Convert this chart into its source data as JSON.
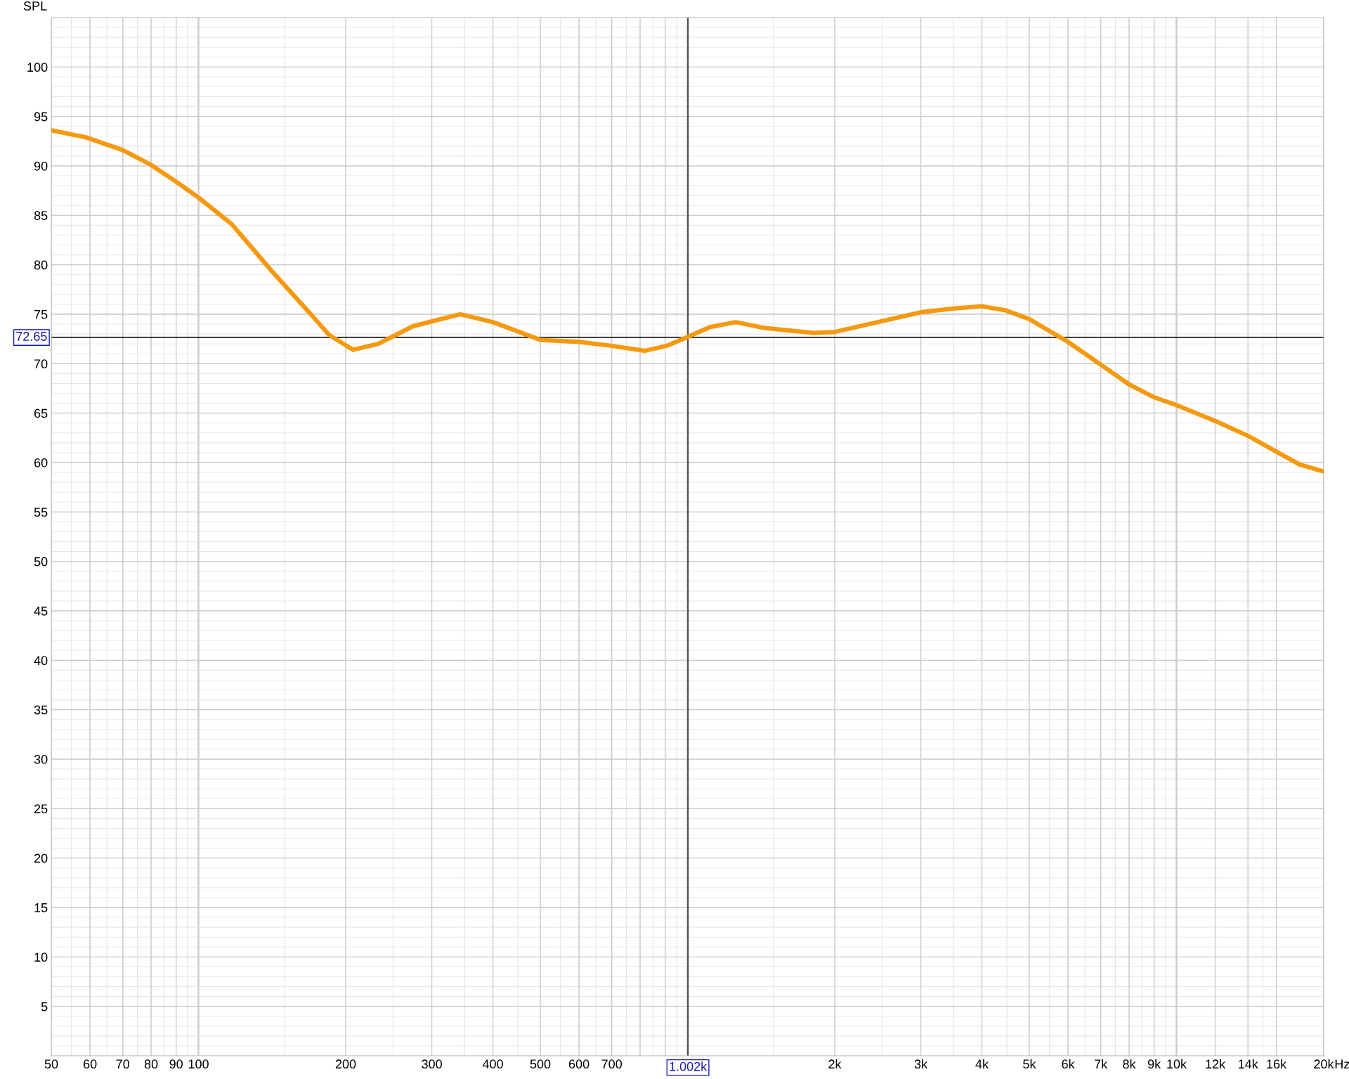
{
  "chart_data": {
    "type": "line",
    "ylabel": "SPL",
    "log": "x",
    "x": [
      50,
      58.8,
      70,
      80,
      90,
      100,
      117,
      141,
      169,
      185,
      207,
      233,
      275,
      343,
      400,
      500,
      600,
      700,
      819,
      906,
      1000,
      1111,
      1255,
      1440,
      1808,
      2000,
      2448,
      3000,
      3530,
      4000,
      4470,
      5000,
      6000,
      7000,
      8000,
      9000,
      10000,
      12000,
      14000,
      16000,
      17850,
      20000
    ],
    "series": [
      {
        "color": "#f5990f",
        "values": [
          93.6,
          92.9,
          91.6,
          90.1,
          88.4,
          86.8,
          84.1,
          79.4,
          75.1,
          72.9,
          71.4,
          72.0,
          73.8,
          75.0,
          74.2,
          72.4,
          72.2,
          71.8,
          71.3,
          71.8,
          72.7,
          73.7,
          74.2,
          73.6,
          73.1,
          73.2,
          74.2,
          75.2,
          75.6,
          75.8,
          75.4,
          74.5,
          72.2,
          69.9,
          67.9,
          66.6,
          65.8,
          64.2,
          62.7,
          61.1,
          59.8,
          59.1
        ]
      }
    ],
    "xlim": [
      50,
      20000
    ],
    "ylim": [
      0,
      105
    ],
    "xticks": [
      50,
      60,
      70,
      80,
      90,
      100,
      200,
      300,
      400,
      500,
      600,
      700,
      {
        "value": 800,
        "label": null
      },
      {
        "value": 900,
        "label": null
      },
      {
        "value": 1000,
        "label": null
      },
      {
        "value": 2000,
        "label": "2k"
      },
      {
        "value": 3000,
        "label": "3k"
      },
      {
        "value": 4000,
        "label": "4k"
      },
      {
        "value": 5000,
        "label": "5k"
      },
      {
        "value": 6000,
        "label": "6k"
      },
      {
        "value": 7000,
        "label": "7k"
      },
      {
        "value": 8000,
        "label": "8k"
      },
      {
        "value": 9000,
        "label": "9k"
      },
      {
        "value": 10000,
        "label": "10k"
      },
      {
        "value": 12000,
        "label": "12k"
      },
      {
        "value": 14000,
        "label": "14k"
      },
      {
        "value": 16000,
        "label": "16k"
      },
      {
        "value": 20000,
        "label": "20k"
      }
    ],
    "xlabel": "Hz",
    "yticks": [
      5,
      10,
      15,
      20,
      25,
      30,
      35,
      40,
      45,
      50,
      55,
      60,
      65,
      70,
      75,
      80,
      85,
      90,
      95,
      100
    ],
    "grid": true,
    "marker": "none",
    "line_style": "solid",
    "ref_lines": [
      {
        "axis": "y",
        "value": 72.65,
        "label": "72.65",
        "color": "#000000"
      },
      {
        "axis": "x",
        "value": 1002,
        "label": "1.002k",
        "color": "#000000"
      }
    ]
  }
}
